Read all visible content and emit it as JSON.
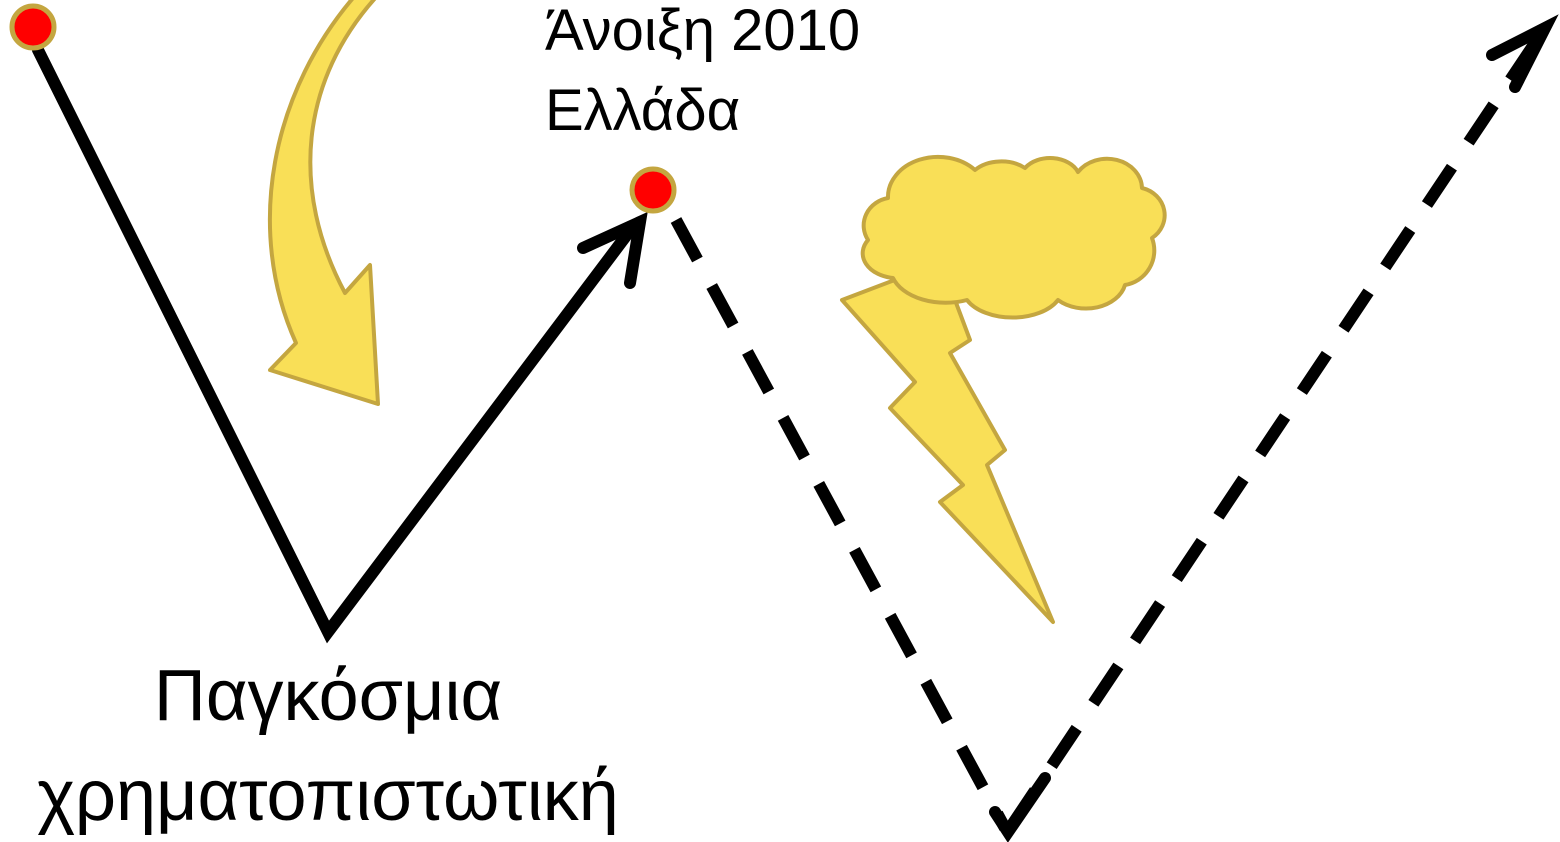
{
  "annotations": [
    {
      "lines": [
        "Άνοιξη 2010",
        "Ελλάδα"
      ]
    },
    {
      "lines": [
        "Παγκόσμια",
        "χρηματοπιστωτική"
      ]
    }
  ]
}
